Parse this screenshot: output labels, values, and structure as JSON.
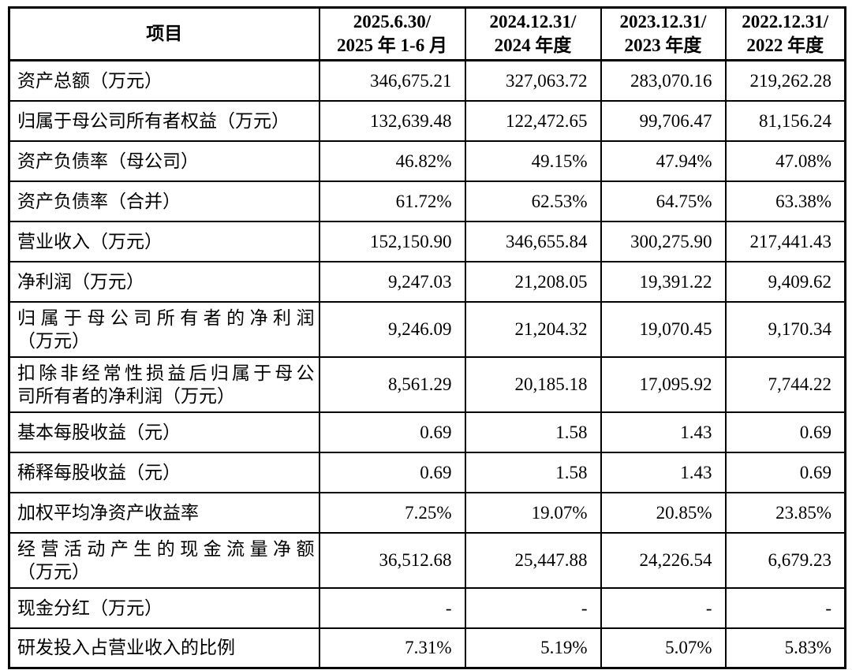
{
  "table": {
    "columns": [
      {
        "name": "item",
        "lines": [
          "项目"
        ]
      },
      {
        "name": "period-2025",
        "lines": [
          "2025.6.30/",
          "2025 年 1-6 月"
        ]
      },
      {
        "name": "period-2024",
        "lines": [
          "2024.12.31/",
          "2024 年度"
        ]
      },
      {
        "name": "period-2023",
        "lines": [
          "2023.12.31/",
          "2023 年度"
        ]
      },
      {
        "name": "period-2022",
        "lines": [
          "2022.12.31/",
          "2022 年度"
        ]
      }
    ],
    "rows": [
      {
        "label": [
          "资产总额（万元）"
        ],
        "values": [
          "346,675.21",
          "327,063.72",
          "283,070.16",
          "219,262.28"
        ]
      },
      {
        "label": [
          "归属于母公司所有者权益（万元）"
        ],
        "values": [
          "132,639.48",
          "122,472.65",
          "99,706.47",
          "81,156.24"
        ]
      },
      {
        "label": [
          "资产负债率（母公司）"
        ],
        "values": [
          "46.82%",
          "49.15%",
          "47.94%",
          "47.08%"
        ]
      },
      {
        "label": [
          "资产负债率（合并）"
        ],
        "values": [
          "61.72%",
          "62.53%",
          "64.75%",
          "63.38%"
        ]
      },
      {
        "label": [
          "营业收入（万元）"
        ],
        "values": [
          "152,150.90",
          "346,655.84",
          "300,275.90",
          "217,441.43"
        ]
      },
      {
        "label": [
          "净利润（万元）"
        ],
        "values": [
          "9,247.03",
          "21,208.05",
          "19,391.22",
          "9,409.62"
        ]
      },
      {
        "label": [
          "归属于母公司所有者的净利润",
          "（万元）"
        ],
        "values": [
          "9,246.09",
          "21,204.32",
          "19,070.45",
          "9,170.34"
        ]
      },
      {
        "label": [
          "扣除非经常性损益后归属于母公",
          "司所有者的净利润（万元）"
        ],
        "values": [
          "8,561.29",
          "20,185.18",
          "17,095.92",
          "7,744.22"
        ]
      },
      {
        "label": [
          "基本每股收益（元）"
        ],
        "values": [
          "0.69",
          "1.58",
          "1.43",
          "0.69"
        ]
      },
      {
        "label": [
          "稀释每股收益（元）"
        ],
        "values": [
          "0.69",
          "1.58",
          "1.43",
          "0.69"
        ]
      },
      {
        "label": [
          "加权平均净资产收益率"
        ],
        "values": [
          "7.25%",
          "19.07%",
          "20.85%",
          "23.85%"
        ]
      },
      {
        "label": [
          "经营活动产生的现金流量净额",
          "（万元）"
        ],
        "values": [
          "36,512.68",
          "25,447.88",
          "24,226.54",
          "6,679.23"
        ]
      },
      {
        "label": [
          "现金分红（万元）"
        ],
        "values": [
          "-",
          "-",
          "-",
          "-"
        ]
      },
      {
        "label": [
          "研发投入占营业收入的比例"
        ],
        "values": [
          "7.31%",
          "5.19%",
          "5.07%",
          "5.83%"
        ]
      }
    ]
  }
}
